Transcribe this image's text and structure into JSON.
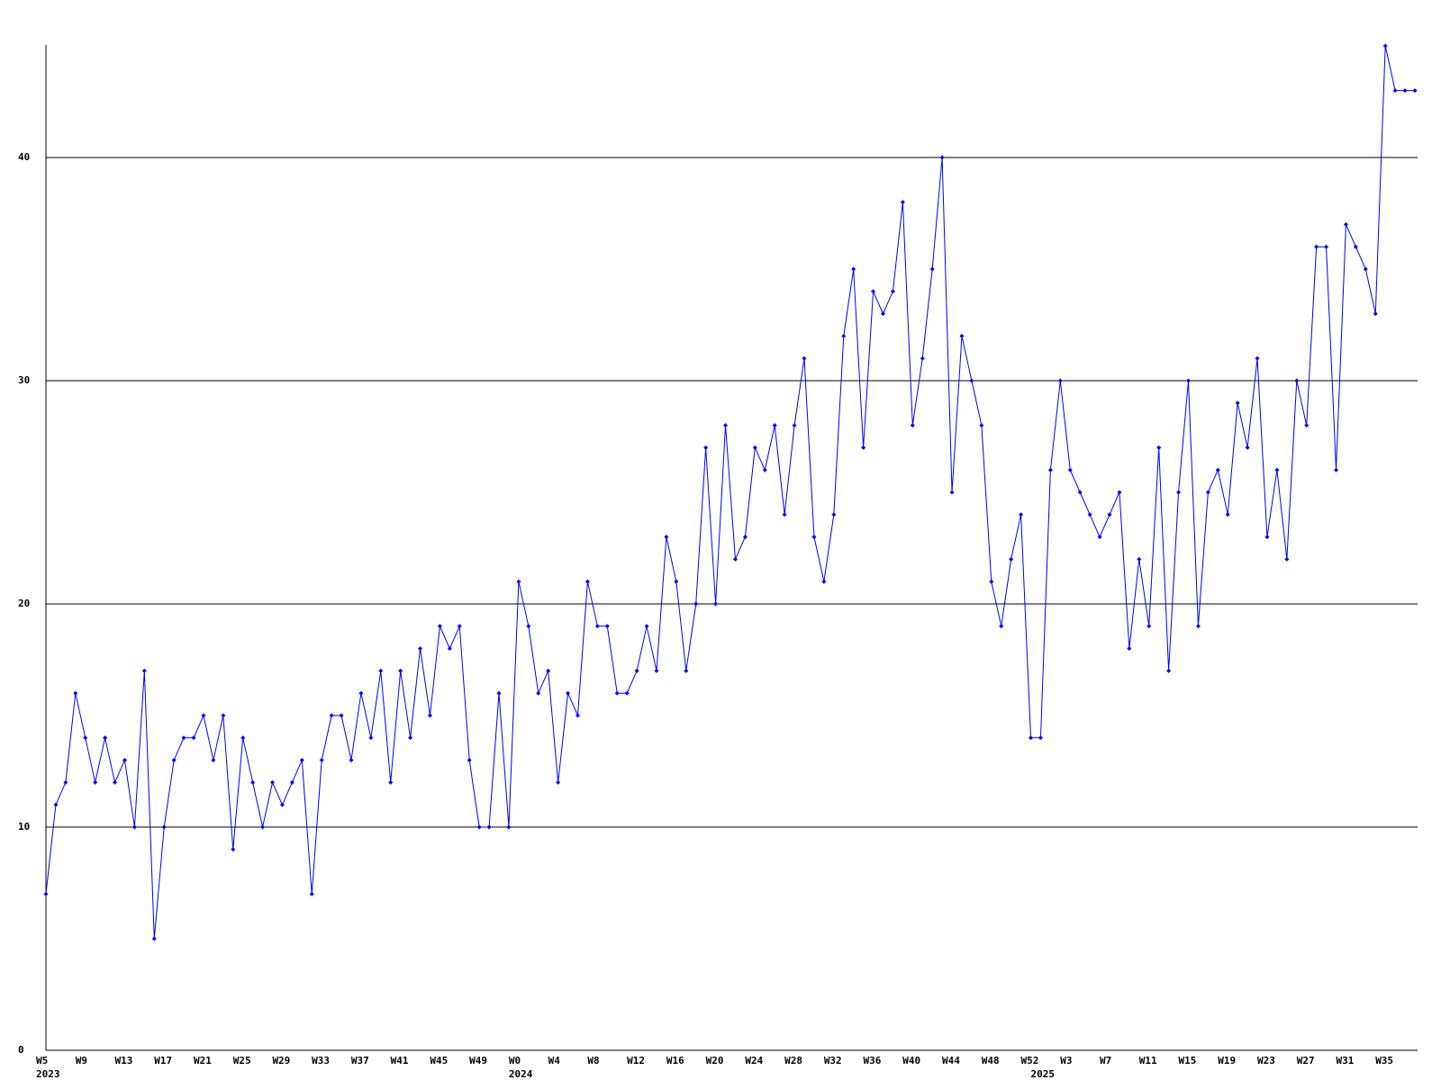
{
  "chart_data": {
    "type": "line",
    "categories": [
      "W5",
      null,
      null,
      null,
      "W9",
      null,
      null,
      null,
      "W13",
      null,
      null,
      null,
      "W17",
      null,
      null,
      null,
      "W21",
      null,
      null,
      null,
      "W25",
      null,
      null,
      null,
      "W29",
      null,
      null,
      null,
      "W33",
      null,
      null,
      null,
      "W37",
      null,
      null,
      null,
      "W41",
      null,
      null,
      null,
      "W45",
      null,
      null,
      null,
      "W49",
      null,
      null,
      null,
      "W0",
      null,
      null,
      null,
      "W4",
      null,
      null,
      null,
      "W8",
      null,
      null,
      null,
      "W12",
      null,
      null,
      null,
      "W16",
      null,
      null,
      null,
      "W20",
      null,
      null,
      null,
      "W24",
      null,
      null,
      null,
      "W28",
      null,
      null,
      null,
      "W32",
      null,
      null,
      null,
      "W36",
      null,
      null,
      null,
      "W40",
      null,
      null,
      null,
      "W44",
      null,
      null,
      null,
      "W48",
      null,
      null,
      null,
      "W52",
      null,
      null,
      null,
      "W3",
      null,
      null,
      null,
      "W7",
      null,
      null,
      null,
      "W11",
      null,
      null,
      null,
      "W15",
      null,
      null,
      null,
      "W19",
      null,
      null,
      null,
      "W23",
      null,
      null,
      null,
      "W27",
      null,
      null,
      null,
      "W31",
      null,
      null,
      null,
      "W35",
      null,
      null,
      null
    ],
    "x_sublabels": [
      "2023",
      null,
      null,
      null,
      null,
      null,
      null,
      null,
      null,
      null,
      null,
      null,
      null,
      null,
      null,
      null,
      null,
      null,
      null,
      null,
      null,
      null,
      null,
      null,
      null,
      null,
      null,
      null,
      null,
      null,
      null,
      null,
      null,
      null,
      null,
      null,
      null,
      null,
      null,
      null,
      null,
      null,
      null,
      null,
      null,
      null,
      null,
      null,
      "2024",
      null,
      null,
      null,
      null,
      null,
      null,
      null,
      null,
      null,
      null,
      null,
      null,
      null,
      null,
      null,
      null,
      null,
      null,
      null,
      null,
      null,
      null,
      null,
      null,
      null,
      null,
      null,
      null,
      null,
      null,
      null,
      null,
      null,
      null,
      null,
      null,
      null,
      null,
      null,
      null,
      null,
      null,
      null,
      null,
      null,
      null,
      null,
      null,
      null,
      null,
      null,
      null,
      "2025",
      null,
      null,
      null,
      null,
      null,
      null,
      null,
      null,
      null,
      null,
      null,
      null,
      null,
      null,
      null,
      null,
      null,
      null,
      null,
      null,
      null,
      null,
      null,
      null,
      null,
      null,
      null,
      null,
      null,
      null,
      null,
      null,
      null,
      null,
      null,
      null,
      null,
      null
    ],
    "series": [
      {
        "color": "#0000ff",
        "values": [
          7,
          11,
          12,
          16,
          14,
          12,
          14,
          12,
          13,
          10,
          17,
          5,
          10,
          13,
          14,
          14,
          15,
          13,
          15,
          9,
          14,
          12,
          10,
          12,
          11,
          12,
          13,
          7,
          13,
          15,
          15,
          13,
          16,
          14,
          17,
          12,
          17,
          14,
          18,
          15,
          19,
          18,
          19,
          13,
          10,
          10,
          16,
          10,
          21,
          19,
          16,
          17,
          12,
          16,
          15,
          21,
          19,
          19,
          16,
          16,
          17,
          19,
          17,
          23,
          21,
          17,
          20,
          27,
          20,
          28,
          22,
          23,
          27,
          26,
          28,
          24,
          28,
          31,
          23,
          21,
          24,
          32,
          35,
          27,
          34,
          33,
          34,
          38,
          28,
          31,
          35,
          40,
          25,
          32,
          30,
          28,
          21,
          19,
          22,
          24,
          14,
          14,
          26,
          30,
          26,
          25,
          24,
          23,
          24,
          25,
          18,
          22,
          19,
          27,
          17,
          25,
          30,
          19,
          25,
          26,
          24,
          29,
          27,
          31,
          23,
          26,
          22,
          30,
          28,
          36,
          36,
          26,
          37,
          36,
          35,
          33,
          45,
          43,
          43,
          43
        ]
      }
    ],
    "ylim": [
      0,
      45
    ],
    "yticks": [
      0,
      10,
      20,
      30,
      40
    ],
    "grid": true
  }
}
